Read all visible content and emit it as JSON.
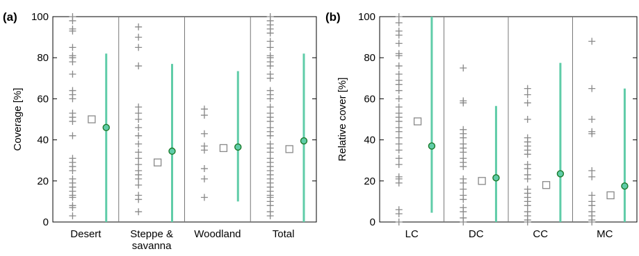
{
  "chart_data": [
    {
      "type": "scatter",
      "panel_label": "(a)",
      "ylabel": "Coverage [%]",
      "ylim": [
        0,
        100
      ],
      "yticks": [
        0,
        20,
        40,
        60,
        80,
        100
      ],
      "grid": false,
      "categories": [
        "Desert",
        "Steppe &\nsavanna",
        "Woodland",
        "Total"
      ],
      "groups": [
        {
          "name": "Desert",
          "points": [
            100,
            98,
            94,
            93,
            85,
            81,
            80,
            78,
            72,
            64,
            62,
            60,
            53,
            51,
            49,
            42,
            31,
            29,
            27,
            25,
            21,
            19,
            17,
            15,
            13,
            12,
            8,
            7,
            3
          ],
          "mean_square": 50,
          "median_circle": 46,
          "range": [
            0,
            82
          ]
        },
        {
          "name": "Steppe & savanna",
          "points": [
            95,
            90,
            85,
            76,
            56,
            53,
            50,
            46,
            42,
            38,
            34,
            31,
            28,
            25,
            23,
            21,
            18,
            13,
            11,
            5
          ],
          "mean_square": 29,
          "median_circle": 34.5,
          "range": [
            0,
            77
          ]
        },
        {
          "name": "Woodland",
          "points": [
            55,
            52,
            43,
            37,
            35,
            26,
            21,
            12
          ],
          "mean_square": 36,
          "median_circle": 36.5,
          "range": [
            10,
            73.5
          ]
        },
        {
          "name": "Total",
          "points": [
            100,
            98,
            96,
            94,
            92,
            88,
            85,
            81,
            80,
            78,
            76,
            72,
            70,
            64,
            62,
            60,
            56,
            53,
            51,
            49,
            46,
            44,
            42,
            38,
            36,
            34,
            31,
            29,
            27,
            25,
            23,
            21,
            19,
            17,
            15,
            13,
            12,
            10,
            8,
            5,
            3
          ],
          "mean_square": 35.5,
          "median_circle": 39.5,
          "range": [
            0,
            82
          ]
        }
      ]
    },
    {
      "type": "scatter",
      "panel_label": "(b)",
      "ylabel": "Relative cover [%]",
      "ylim": [
        0,
        100
      ],
      "yticks": [
        0,
        20,
        40,
        60,
        80,
        100
      ],
      "grid": false,
      "categories": [
        "LC",
        "DC",
        "CC",
        "MC"
      ],
      "groups": [
        {
          "name": "LC",
          "points": [
            100,
            97,
            93,
            91,
            87,
            82,
            81,
            76,
            72,
            69,
            67,
            64,
            60,
            56,
            53,
            51,
            49,
            46,
            44,
            41,
            38,
            35,
            31,
            28,
            22,
            21,
            19,
            6,
            4,
            0
          ],
          "mean_square": 49,
          "median_circle": 37,
          "range": [
            4.5,
            100
          ]
        },
        {
          "name": "DC",
          "points": [
            75,
            59,
            58,
            45,
            43,
            41,
            38,
            36,
            34,
            31,
            29,
            27,
            21,
            19,
            16,
            13,
            11,
            7,
            5,
            2,
            0
          ],
          "mean_square": 20,
          "median_circle": 21.5,
          "range": [
            0,
            56.5
          ]
        },
        {
          "name": "CC",
          "points": [
            65,
            62,
            58,
            50,
            41,
            39,
            37,
            35,
            33,
            28,
            26,
            23,
            21,
            16,
            14,
            12,
            10,
            8,
            5,
            3,
            1,
            0
          ],
          "mean_square": 18,
          "median_circle": 23.5,
          "range": [
            0,
            77.5
          ]
        },
        {
          "name": "MC",
          "points": [
            88,
            65,
            50,
            44,
            43,
            25,
            22,
            13,
            10,
            8,
            5,
            3,
            1,
            0
          ],
          "mean_square": 13,
          "median_circle": 17.5,
          "range": [
            0,
            65
          ]
        }
      ]
    }
  ],
  "colors": {
    "points": "#888888",
    "square": "#888888",
    "range_line": "#5fcca8",
    "circle_stroke": "#1a7a2a",
    "frame": "#000000",
    "separator": "#777777"
  }
}
